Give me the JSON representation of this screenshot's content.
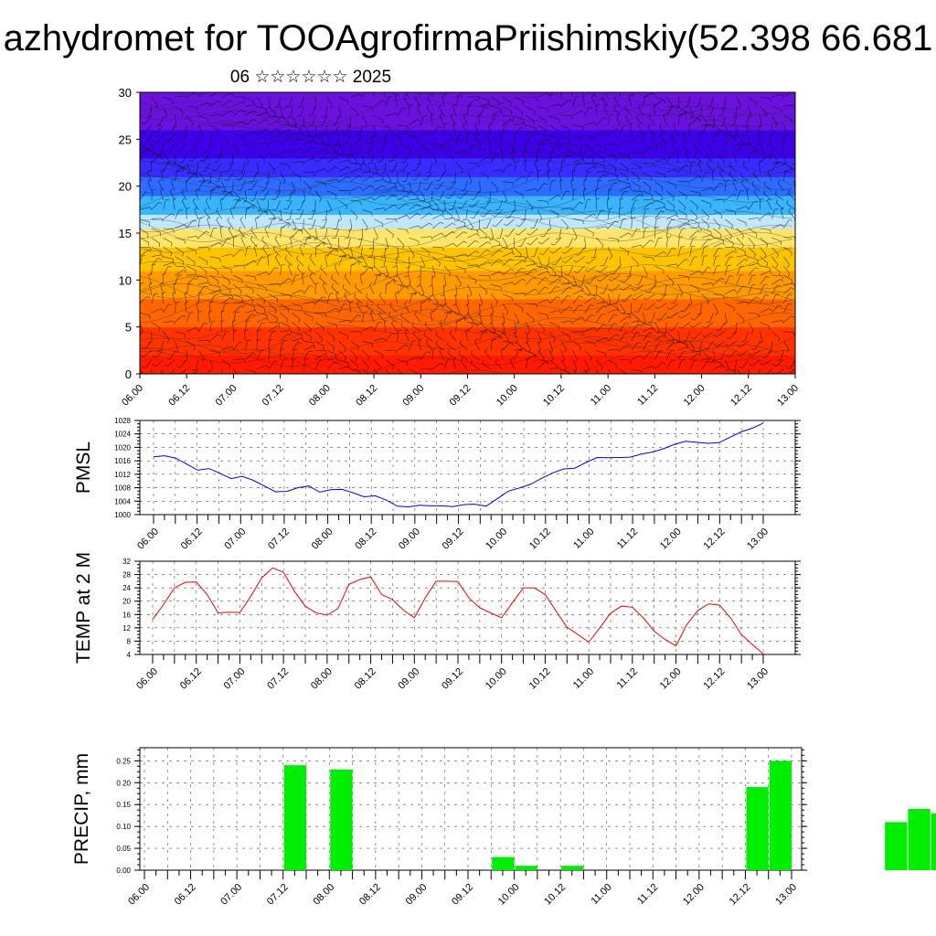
{
  "title": "azhydromet for TOOAgrofirmaPriishimskiy(52.398 66.681",
  "subtitle": "06 ☆☆☆☆☆☆ 2025",
  "chart_data": [
    {
      "type": "heatmap",
      "panel": "vertical-profile",
      "ylim": [
        0,
        30
      ],
      "yticks": [
        0,
        5,
        10,
        15,
        20,
        25,
        30
      ],
      "xlim": [
        0,
        28
      ],
      "xtick_labels": [
        "06.00",
        "06.12",
        "07.00",
        "07.12",
        "08.00",
        "08.12",
        "09.00",
        "09.12",
        "10.00",
        "10.12",
        "11.00",
        "11.12",
        "12.00",
        "12.12",
        "13.00"
      ],
      "color_bands": [
        {
          "to": 2,
          "color": "#ff1a00"
        },
        {
          "to": 5,
          "color": "#ff3300"
        },
        {
          "to": 8,
          "color": "#ff6600"
        },
        {
          "to": 11,
          "color": "#ff9a00"
        },
        {
          "to": 13.5,
          "color": "#ffc400"
        },
        {
          "to": 15.5,
          "color": "#ffe56a"
        },
        {
          "to": 17,
          "color": "#bfe8ff"
        },
        {
          "to": 19,
          "color": "#3ab4ff"
        },
        {
          "to": 21,
          "color": "#2d6cff"
        },
        {
          "to": 23,
          "color": "#3a2bff"
        },
        {
          "to": 26,
          "color": "#3d00e8"
        },
        {
          "to": 30,
          "color": "#6a11dd"
        }
      ],
      "grid": false,
      "overlay": "wind barbs"
    },
    {
      "type": "line",
      "ylabel": "PMSL",
      "ylim": [
        1000,
        1028
      ],
      "yticks": [
        1000,
        1004,
        1008,
        1012,
        1016,
        1020,
        1024,
        1028
      ],
      "xtick_labels": [
        "06.00",
        "06.12",
        "07.00",
        "07.12",
        "08.00",
        "08.12",
        "09.00",
        "09.12",
        "10.00",
        "10.12",
        "11.00",
        "11.12",
        "12.00",
        "12.12",
        "13.00"
      ],
      "grid": true,
      "color": "#0000ee",
      "values": [
        1017.2,
        1017.5,
        1016.8,
        1015,
        1013.2,
        1013.7,
        1012.3,
        1010.7,
        1011.4,
        1010.2,
        1008.5,
        1006.8,
        1006.9,
        1008,
        1008.5,
        1006.7,
        1007.4,
        1007.5,
        1006.5,
        1005.3,
        1005.6,
        1004.3,
        1002.5,
        1002.3,
        1002.8,
        1002.6,
        1002.6,
        1002.4,
        1003,
        1003.1,
        1002.5,
        1004.7,
        1007,
        1007.9,
        1009,
        1010.8,
        1012.4,
        1013.6,
        1013.8,
        1015.5,
        1017,
        1016.9,
        1017,
        1017.1,
        1018,
        1018.6,
        1019.6,
        1020.9,
        1021.8,
        1021.5,
        1021.2,
        1021.4,
        1023,
        1024.6,
        1025.7,
        1027.2
      ]
    },
    {
      "type": "line",
      "ylabel": "TEMP at 2 M",
      "ylim": [
        4,
        32
      ],
      "yticks": [
        4,
        8,
        12,
        16,
        20,
        24,
        28,
        32
      ],
      "xtick_labels": [
        "06.00",
        "06.12",
        "07.00",
        "07.12",
        "08.00",
        "08.12",
        "09.00",
        "09.12",
        "10.00",
        "10.12",
        "11.00",
        "11.12",
        "12.00",
        "12.12",
        "13.00"
      ],
      "grid": true,
      "color": "#ee0000",
      "values": [
        14.5,
        19,
        24,
        25.7,
        25.8,
        22,
        16.5,
        16.7,
        16.6,
        21.5,
        27,
        30,
        28.7,
        23,
        18.5,
        16.5,
        15.8,
        17.8,
        25,
        26.5,
        27.3,
        22,
        20.5,
        17.3,
        15,
        21,
        26,
        26,
        25.9,
        21,
        18,
        16.5,
        15,
        19.6,
        24,
        24,
        22,
        17,
        12.2,
        10,
        7.7,
        12,
        16.4,
        18.5,
        18.2,
        15,
        11,
        8.5,
        6.6,
        13,
        17.2,
        19.2,
        18.8,
        15,
        10,
        7,
        4.2
      ]
    },
    {
      "type": "bar",
      "ylabel": "PRECIP, mm",
      "ylim": [
        0,
        0.28
      ],
      "yticks": [
        0,
        0.05,
        0.1,
        0.15,
        0.2,
        0.25
      ],
      "ytick_labels": [
        "0.00",
        "0.05",
        "0.10",
        "0.15",
        "0.20",
        "0.25"
      ],
      "xtick_labels": [
        "06.00",
        "06.12",
        "07.00",
        "07.12",
        "08.00",
        "08.12",
        "09.00",
        "09.12",
        "10.00",
        "10.12",
        "11.00",
        "11.12",
        "12.00",
        "12.12",
        "13.00"
      ],
      "grid": true,
      "color": "#00ee00",
      "bars": [
        {
          "x": 3.0,
          "value": 0.24
        },
        {
          "x": 4.0,
          "value": 0.23
        },
        {
          "x": 7.5,
          "value": 0.03
        },
        {
          "x": 8.0,
          "value": 0.01
        },
        {
          "x": 9.0,
          "value": 0.01
        },
        {
          "x": 13.0,
          "value": 0.19
        },
        {
          "x": 13.5,
          "value": 0.25
        },
        {
          "x": 16.0,
          "value": 0.11
        },
        {
          "x": 16.5,
          "value": 0.14
        },
        {
          "x": 17.0,
          "value": 0.13
        }
      ]
    }
  ]
}
